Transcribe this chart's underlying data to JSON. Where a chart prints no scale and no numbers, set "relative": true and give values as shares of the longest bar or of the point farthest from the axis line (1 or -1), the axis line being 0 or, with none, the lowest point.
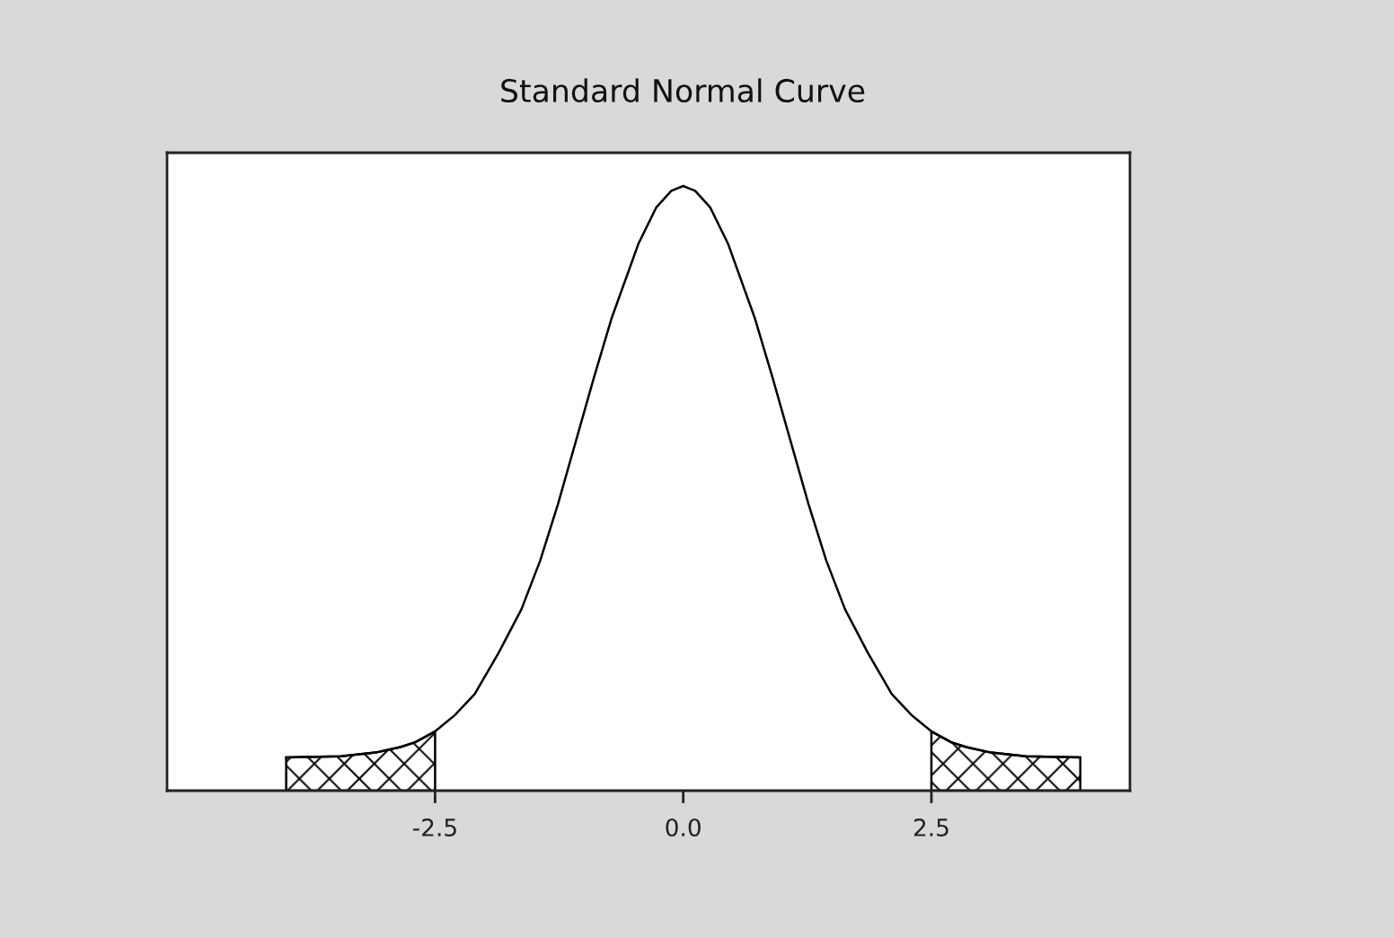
{
  "chart_data": {
    "type": "line",
    "title": "Standard Normal Curve",
    "relative": true,
    "xlim": [
      -5.2,
      4.5
    ],
    "xticks": [
      -2.5,
      {
        "value": 0,
        "label": "0.0"
      },
      2.5
    ],
    "grid": false,
    "series": [
      {
        "color": "#000000",
        "x": [
          -4,
          -3.45,
          -3.1,
          -2.85,
          -2.7,
          -2.5,
          -2.3,
          -2.1,
          -1.86,
          -1.63,
          -1.44,
          -1.26,
          -1.08,
          -0.9,
          -0.72,
          -0.45,
          -0.27,
          -0.12,
          0,
          0.12,
          0.27,
          0.45,
          0.72,
          0.9,
          1.08,
          1.26,
          1.44,
          1.63,
          1.86,
          2.1,
          2.3,
          2.5,
          2.7,
          2.85,
          3.1,
          3.45,
          4
        ],
        "values": [
          0.055,
          0.057,
          0.063,
          0.072,
          0.08,
          0.098,
          0.125,
          0.16,
          0.228,
          0.3,
          0.381,
          0.475,
          0.579,
          0.683,
          0.782,
          0.905,
          0.965,
          0.992,
          1,
          0.992,
          0.965,
          0.905,
          0.782,
          0.683,
          0.579,
          0.475,
          0.381,
          0.3,
          0.228,
          0.16,
          0.125,
          0.098,
          0.08,
          0.072,
          0.063,
          0.057,
          0.055
        ]
      },
      {
        "type": "area",
        "color": "#000000",
        "x": [
          -4,
          -3.45,
          -3.1,
          -2.85,
          -2.7,
          -2.5
        ],
        "values": [
          0.055,
          0.057,
          0.063,
          0.072,
          0.08,
          0.098
        ]
      },
      {
        "type": "area",
        "color": "#000000",
        "x": [
          2.5,
          2.7,
          2.85,
          3.1,
          3.45,
          4
        ],
        "values": [
          0.098,
          0.08,
          0.072,
          0.063,
          0.057,
          0.055
        ]
      }
    ]
  }
}
